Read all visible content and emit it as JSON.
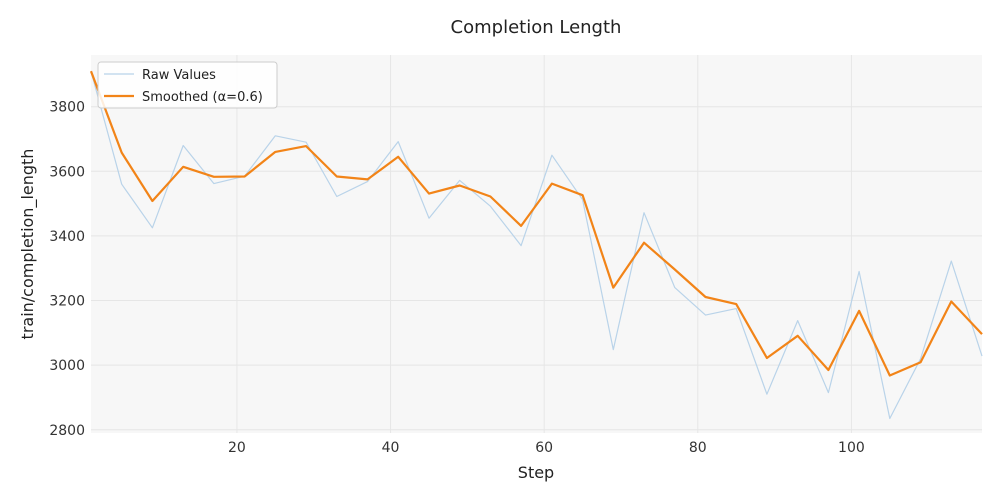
{
  "chart_data": {
    "type": "line",
    "title": "Completion Length",
    "xlabel": "Step",
    "ylabel": "train/completion_length",
    "xlim": [
      1,
      117
    ],
    "ylim": [
      2790,
      3960
    ],
    "xticks": [
      20,
      40,
      60,
      80,
      100
    ],
    "yticks": [
      2800,
      3000,
      3200,
      3400,
      3600,
      3800
    ],
    "grid": true,
    "legend_position": "top-left",
    "x": [
      1,
      5,
      9,
      13,
      17,
      21,
      25,
      29,
      33,
      37,
      41,
      45,
      49,
      53,
      57,
      61,
      65,
      69,
      73,
      77,
      81,
      85,
      89,
      93,
      97,
      101,
      105,
      109,
      113,
      117
    ],
    "series": [
      {
        "name": "Raw Values",
        "color": "#b9d3e9",
        "values": [
          3910,
          3560,
          3425,
          3680,
          3562,
          3585,
          3710,
          3690,
          3522,
          3568,
          3692,
          3455,
          3572,
          3492,
          3370,
          3650,
          3512,
          3048,
          3472,
          3240,
          3155,
          3175,
          2910,
          3138,
          2915,
          3290,
          2835,
          3020,
          3322,
          3028
        ]
      },
      {
        "name": "Smoothed (α=0.6)",
        "color": "#f28418",
        "values": [
          3910,
          3658,
          3508,
          3614,
          3583,
          3584,
          3660,
          3678,
          3584,
          3575,
          3645,
          3531,
          3556,
          3522,
          3431,
          3562,
          3526,
          3240,
          3379,
          3296,
          3211,
          3189,
          3022,
          3091,
          2985,
          3168,
          2968,
          3009,
          3197,
          3096
        ]
      }
    ]
  }
}
